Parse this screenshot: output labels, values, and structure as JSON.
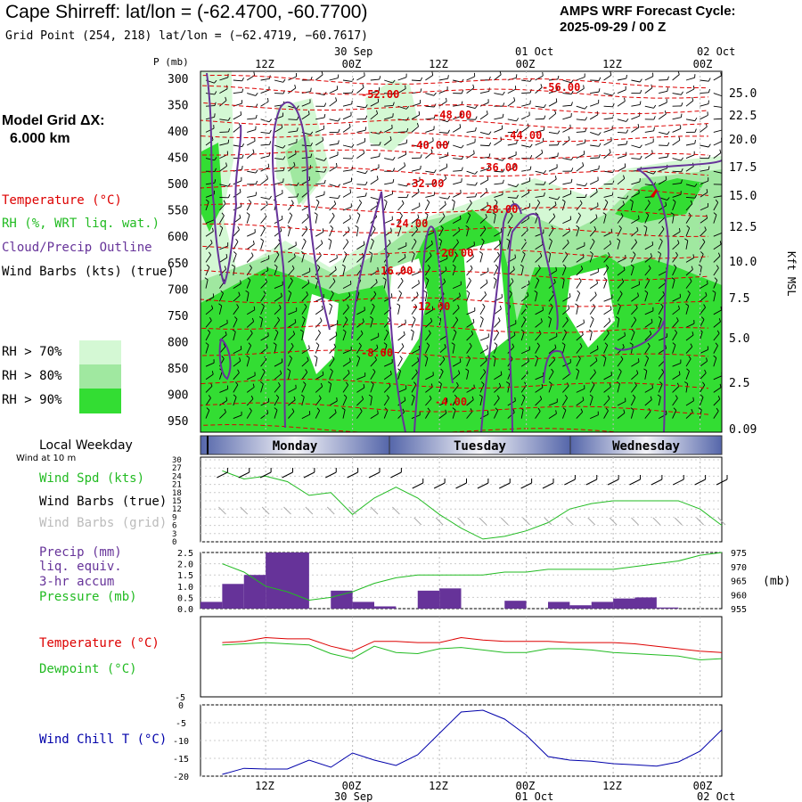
{
  "header": {
    "title": "Cape Shirreff:  lat/lon = (-62.4700, -60.7700)",
    "grid_point": "Grid Point (254, 218) lat/lon = (−62.4719, −60.7617)",
    "cycle_line1": "AMPS WRF Forecast Cycle:",
    "cycle_line2": "2025-09-29 / 00  Z"
  },
  "model": {
    "label": "Model Grid ΔX:",
    "value": "6.000 km"
  },
  "legend": {
    "temperature": "Temperature (°C)",
    "rh": "RH (%, WRT liq. wat.)",
    "cloud": "Cloud/Precip Outline",
    "wind": "Wind Barbs (kts) (true)",
    "rh70": "RH > 70%",
    "rh80": "RH > 80%",
    "rh90": "RH > 90%",
    "rh70_color": "#d4f8d4",
    "rh80_color": "#a0e8a0",
    "rh90_color": "#33dd33"
  },
  "time_axis": {
    "top_labels": [
      "12Z",
      "00Z",
      "12Z",
      "00Z",
      "12Z",
      "00Z"
    ],
    "dates": [
      "30 Sep",
      "01 Oct",
      "02 Oct"
    ],
    "weekday_title": "Local Weekday",
    "weekdays": [
      "Monday",
      "Tuesday",
      "Wednesday"
    ],
    "wind_note": "Wind at 10 m"
  },
  "colors": {
    "temperature": "#dd0000",
    "cloud": "#663399",
    "wind_spd": "#22bb22",
    "precip": "#663399",
    "wind_chill": "#0000aa"
  },
  "chart_data": [
    {
      "type": "contour",
      "name": "cross-section",
      "ylabel": "P (mb)",
      "pressure_levels": [
        300,
        350,
        400,
        450,
        500,
        550,
        600,
        650,
        700,
        750,
        800,
        850,
        900,
        950
      ],
      "height_label": "Kft MSL",
      "heights_kft": [
        "25.0",
        "22.5",
        "20.0",
        "17.5",
        "15.0",
        "12.5",
        "10.0",
        "7.5",
        "5.0",
        "2.5",
        "0.09"
      ],
      "temperature_labels": [
        "-52.00",
        "-56.00",
        "-48.00",
        "-44.00",
        "-40.00",
        "-36.00",
        "-32.00",
        "-28.00",
        "-24.00",
        "-20.00",
        "-16.00",
        "-12.00",
        "-8.00",
        "-4.00"
      ]
    },
    {
      "type": "line",
      "name": "wind",
      "label_spd": "Wind Spd (kts)",
      "label_true": "Wind Barbs (true)",
      "label_grid": "Wind Barbs (grid)",
      "y_ticks": [
        "30",
        "27",
        "24",
        "21",
        "18",
        "15",
        "12",
        "9",
        "6",
        "3",
        "0"
      ],
      "ylim": [
        0,
        30
      ],
      "x_hours": [
        3,
        6,
        9,
        12,
        15,
        18,
        21,
        24,
        27,
        30,
        33,
        36,
        39,
        42,
        45,
        48,
        51,
        54,
        57,
        60,
        63,
        66,
        69,
        72
      ],
      "values": [
        26,
        23,
        24,
        22,
        17,
        18,
        10,
        16,
        20,
        16,
        10,
        5,
        1,
        2,
        4,
        7,
        12,
        14,
        15,
        15,
        15,
        15,
        12,
        6
      ]
    },
    {
      "type": "bar+line",
      "name": "precip-pressure",
      "label_precip": "Precip (mm)",
      "label_liq": "liq. equiv.",
      "label_accum": "3-hr accum",
      "label_pressure": "Pressure (mb)",
      "precip_ticks": [
        "2.5",
        "2.0",
        "1.5",
        "1.0",
        "0.5",
        "0.0"
      ],
      "pressure_ticks": [
        "975",
        "970",
        "965",
        "960",
        "955"
      ],
      "pressure_unit": "(mb)",
      "precip_ylim": [
        0,
        2.5
      ],
      "pressure_ylim": [
        955,
        975
      ],
      "precip": [
        0.3,
        1.1,
        1.5,
        2.5,
        2.5,
        0.0,
        0.8,
        0.3,
        0.1,
        0.0,
        0.8,
        0.9,
        0.0,
        0.0,
        0.35,
        0.0,
        0.3,
        0.15,
        0.3,
        0.45,
        0.5,
        0.05,
        0.0,
        0.0
      ],
      "pressure": [
        971,
        968,
        963,
        961,
        958,
        959,
        961,
        964,
        966,
        967,
        967,
        967,
        967,
        968,
        968,
        969,
        969,
        969,
        969,
        970,
        971,
        972,
        974,
        975
      ]
    },
    {
      "type": "line",
      "name": "temperature-dewpoint",
      "label_temp": "Temperature (°C)",
      "label_dew": "Dewpoint (°C)",
      "y_ticks": [
        "-5"
      ],
      "ylim": [
        -5,
        1.5
      ],
      "temperature": [
        -0.6,
        -0.5,
        -0.2,
        -0.3,
        -0.3,
        -0.9,
        -1.3,
        -0.5,
        -0.5,
        -0.6,
        -0.6,
        -0.2,
        -0.4,
        -0.5,
        -0.5,
        -0.5,
        -0.6,
        -0.6,
        -0.6,
        -0.7,
        -0.9,
        -1.1,
        -1.3,
        -1.4
      ],
      "dewpoint": [
        -0.8,
        -0.7,
        -0.6,
        -0.7,
        -0.8,
        -1.5,
        -1.9,
        -0.9,
        -1.4,
        -1.5,
        -1.1,
        -1.0,
        -1.2,
        -1.4,
        -1.4,
        -1.1,
        -1.1,
        -1.2,
        -1.4,
        -1.5,
        -1.6,
        -1.7,
        -2.0,
        -1.9
      ]
    },
    {
      "type": "line",
      "name": "wind-chill",
      "label": "Wind Chill T (°C)",
      "y_ticks": [
        "0",
        "-5",
        "-10",
        "-15",
        "-20"
      ],
      "ylim": [
        -20,
        0
      ],
      "values": [
        -19.5,
        -17.8,
        -18,
        -18,
        -15.5,
        -17.5,
        -13.5,
        -15.5,
        -17,
        -14,
        -8,
        -2,
        -1.5,
        -4,
        -8.5,
        -14.5,
        -15.5,
        -15.8,
        -16.5,
        -16.8,
        -17.2,
        -16,
        -13,
        -7
      ]
    }
  ]
}
